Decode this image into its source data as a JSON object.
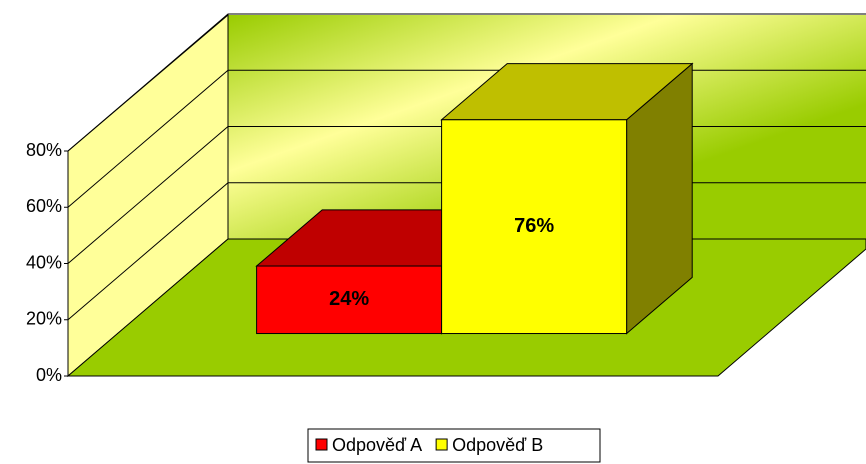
{
  "chart_data": {
    "type": "bar3d",
    "categories": [
      null
    ],
    "series": [
      {
        "name": "Odpověď A",
        "color": "#ff0000",
        "values": [
          24
        ],
        "value_labels": [
          "24%"
        ]
      },
      {
        "name": "Odpověď B",
        "color": "#ffff00",
        "values": [
          76
        ],
        "value_labels": [
          "76%"
        ]
      }
    ],
    "ylim": [
      0,
      80
    ],
    "yticks": [
      {
        "value": 0,
        "label": "0%"
      },
      {
        "value": 20,
        "label": "20%"
      },
      {
        "value": 40,
        "label": "40%"
      },
      {
        "value": 60,
        "label": "60%"
      },
      {
        "value": 80,
        "label": "80%"
      }
    ],
    "grid": true,
    "legend": "bottom"
  }
}
